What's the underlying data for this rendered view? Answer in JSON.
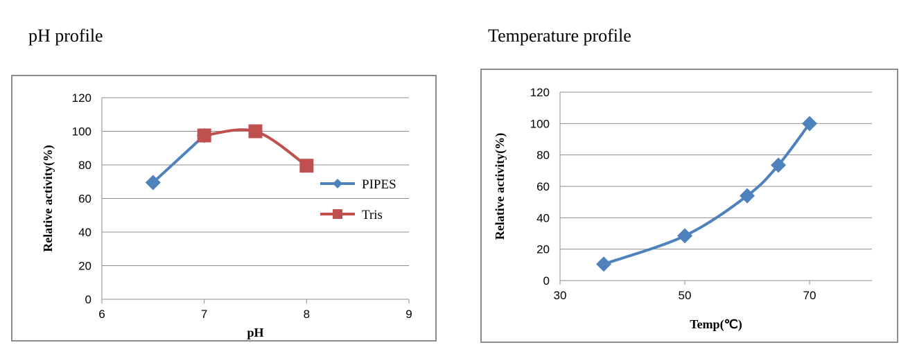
{
  "headings": {
    "ph": "pH profile",
    "temperature": "Temperature profile"
  },
  "chart_data": [
    {
      "type": "line",
      "title": "pH profile",
      "xlabel": "pH",
      "ylabel": "Relative activity(%)",
      "xlim": [
        6,
        9
      ],
      "ylim": [
        0,
        120
      ],
      "xticks": [
        6,
        7,
        8,
        9
      ],
      "yticks": [
        0,
        20,
        40,
        60,
        80,
        100,
        120
      ],
      "grid": true,
      "legend": "right",
      "series": [
        {
          "name": "PIPES",
          "color": "#4f81bd",
          "marker": "diamond",
          "x": [
            6.5,
            7.0
          ],
          "y": [
            69.5,
            97.5
          ]
        },
        {
          "name": "Tris",
          "color": "#c0504d",
          "marker": "square",
          "x": [
            7.0,
            7.5,
            8.0
          ],
          "y": [
            97.5,
            100,
            79.5
          ]
        }
      ]
    },
    {
      "type": "line",
      "title": "Temperature profile",
      "xlabel": "Temp(℃)",
      "ylabel": "Relative activity(%)",
      "xlim": [
        30,
        80
      ],
      "ylim": [
        0,
        120
      ],
      "xticks": [
        30,
        50,
        70
      ],
      "yticks": [
        0,
        20,
        40,
        60,
        80,
        100,
        120
      ],
      "grid": true,
      "legend": "none",
      "series": [
        {
          "color": "#4f81bd",
          "marker": "diamond",
          "x": [
            37,
            50,
            60,
            65,
            70
          ],
          "y": [
            10.5,
            28.5,
            54,
            73.5,
            100
          ]
        }
      ]
    }
  ]
}
